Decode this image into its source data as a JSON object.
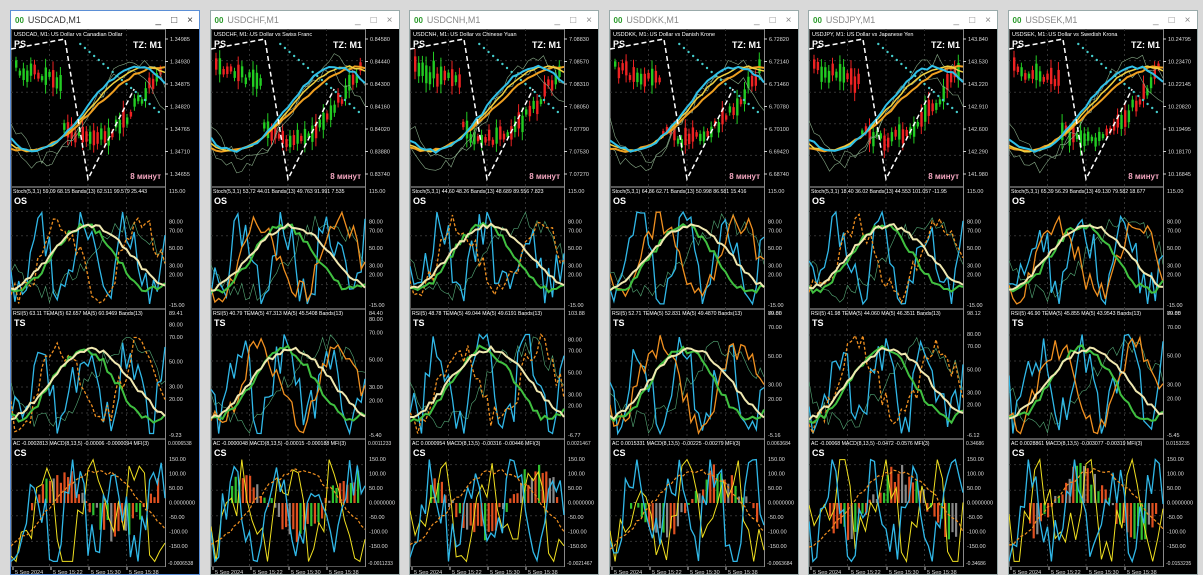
{
  "panel_tags": [
    "PS",
    "OS",
    "TS",
    "CS"
  ],
  "timeframe_label": "TZ: M1",
  "timer_label": "8 минут",
  "stoch_ticks": [
    "115.00",
    "80.00",
    "70.00",
    "50.00",
    "30.00",
    "20.00",
    "-15.00"
  ],
  "rsi_ticks": [
    "80.00",
    "70.00",
    "50.00",
    "30.00",
    "20.00"
  ],
  "ac_ticks": [
    "150.00",
    "100.00",
    "50.00",
    "0.0000000",
    "-50.00",
    "-100.00",
    "-150.00"
  ],
  "time_labels": [
    "5 Sep 2024",
    "5 Sep 15:22",
    "5 Sep 15:30",
    "5 Sep 15:38"
  ],
  "windows": [
    {
      "title": "USDCAD,M1",
      "description": "USDCAD, M1: US Dollar vs Canadian Dollar",
      "price_ticks": [
        "1.34985",
        "1.34930",
        "1.34875",
        "1.34820",
        "1.34765",
        "1.34710",
        "1.34655"
      ],
      "stoch_header": "Stoch(5,3,1) 59.09 68.15 Bands(13) 62.511 99.579 25.443",
      "rsi_header": "RSI(5) 63.11 TEMA(5) 62.657 MA(5) 60.9469 Bands(13)",
      "rsi_range": [
        "89.41",
        "-9.23"
      ],
      "ac_header": "AC -0.0002813 MACD(8,13,5) -0.00006 -0.0000094 MFI(3)",
      "ac_range": [
        "0.0006538",
        "-0.0006538"
      ]
    },
    {
      "title": "USDCHF,M1",
      "description": "USDCHF, M1: US Dollar vs Swiss Franc",
      "price_ticks": [
        "0.84580",
        "0.84440",
        "0.84300",
        "0.84160",
        "0.84020",
        "0.83880",
        "0.83740"
      ],
      "stoch_header": "Stoch(5,3,1) 53.72 44.01 Bands(13) 49.763 91.991 7.535",
      "rsi_header": "RSI(5) 40.79 TEMA(5) 47.313 MA(5) 45.5408 Bands(13)",
      "rsi_range": [
        "84.40",
        "-5.40"
      ],
      "ac_header": "AC -0.0000048 MACD(8,13,5) -0.00015 -0.000188 MFI(3)",
      "ac_range": [
        "0.0011233",
        "-0.0011233"
      ]
    },
    {
      "title": "USDCNH,M1",
      "description": "USDCNH, M1: US Dollar vs Chinese Yuan",
      "price_ticks": [
        "7.08830",
        "7.08570",
        "7.08310",
        "7.08050",
        "7.07790",
        "7.07530",
        "7.07270"
      ],
      "stoch_header": "Stoch(5,3,1) 44.60 48.26 Bands(13) 48.689 89.556 7.823",
      "rsi_header": "RSI(5) 48.78 TEMA(5) 49.044 MA(5) 49.6191 Bands(13)",
      "rsi_range": [
        "103.88",
        "-6.77"
      ],
      "ac_header": "AC 0.0000954 MACD(8,13,5) -0.00316 -0.00446 MFI(3)",
      "ac_range": [
        "0.0021467",
        "-0.0021467"
      ]
    },
    {
      "title": "USDDKK,M1",
      "description": "USDDKK, M1: US Dollar vs Danish Krone",
      "price_ticks": [
        "6.72820",
        "6.72140",
        "6.71460",
        "6.70780",
        "6.70100",
        "6.69420",
        "6.68740"
      ],
      "stoch_header": "Stoch(5,3,1) 64.86 62.71 Bands(13) 50.998 86.581 15.416",
      "rsi_header": "RSI(5) 52.71 TEMA(5) 52.831 MA(5) 49.4870 Bands(13)",
      "rsi_range": [
        "79.86",
        "-5.16"
      ],
      "ac_header": "AC 0.0015331 MACD(8,13,5) -0.00225 -0.00279 MFI(3)",
      "ac_range": [
        "0.0063684",
        "-0.0063684"
      ]
    },
    {
      "title": "USDJPY,M1",
      "description": "USDJPY, M1: US Dollar vs Japanese Yen",
      "price_ticks": [
        "143.840",
        "143.530",
        "143.220",
        "142.910",
        "142.600",
        "142.290",
        "141.980"
      ],
      "stoch_header": "Stoch(5,3,1) 18.40 36.02 Bands(13) 44.553 101.057 -11.95",
      "rsi_header": "RSI(5) 41.98 TEMA(5) 44.060 MA(5) 46.3511 Bands(13)",
      "rsi_range": [
        "98.12",
        "-6.12"
      ],
      "ac_header": "AC -0.00068 MACD(8,13,5) -0.0472 -0.0576 MFI(3)",
      "ac_range": [
        "0.34686",
        "-0.34686"
      ]
    },
    {
      "title": "USDSEK,M1",
      "description": "USDSEK, M1: US Dollar vs Swedish Krona",
      "price_ticks": [
        "10.24795",
        "10.23470",
        "10.22145",
        "10.20820",
        "10.19495",
        "10.18170",
        "10.16845"
      ],
      "stoch_header": "Stoch(5,3,1) 65.39 56.29 Bands(13) 49.130 79.582 18.677",
      "rsi_header": "RSI(5) 46.90 TEMA(5) 45.855 MA(5) 43.9543 Bands(13)",
      "rsi_range": [
        "79.88",
        "-5.45"
      ],
      "ac_header": "AC 0.0028861 MACD(8,13,5) -0.003077 -0.00319 MFI(3)",
      "ac_range": [
        "0.0153235",
        "-0.0153235"
      ]
    }
  ]
}
